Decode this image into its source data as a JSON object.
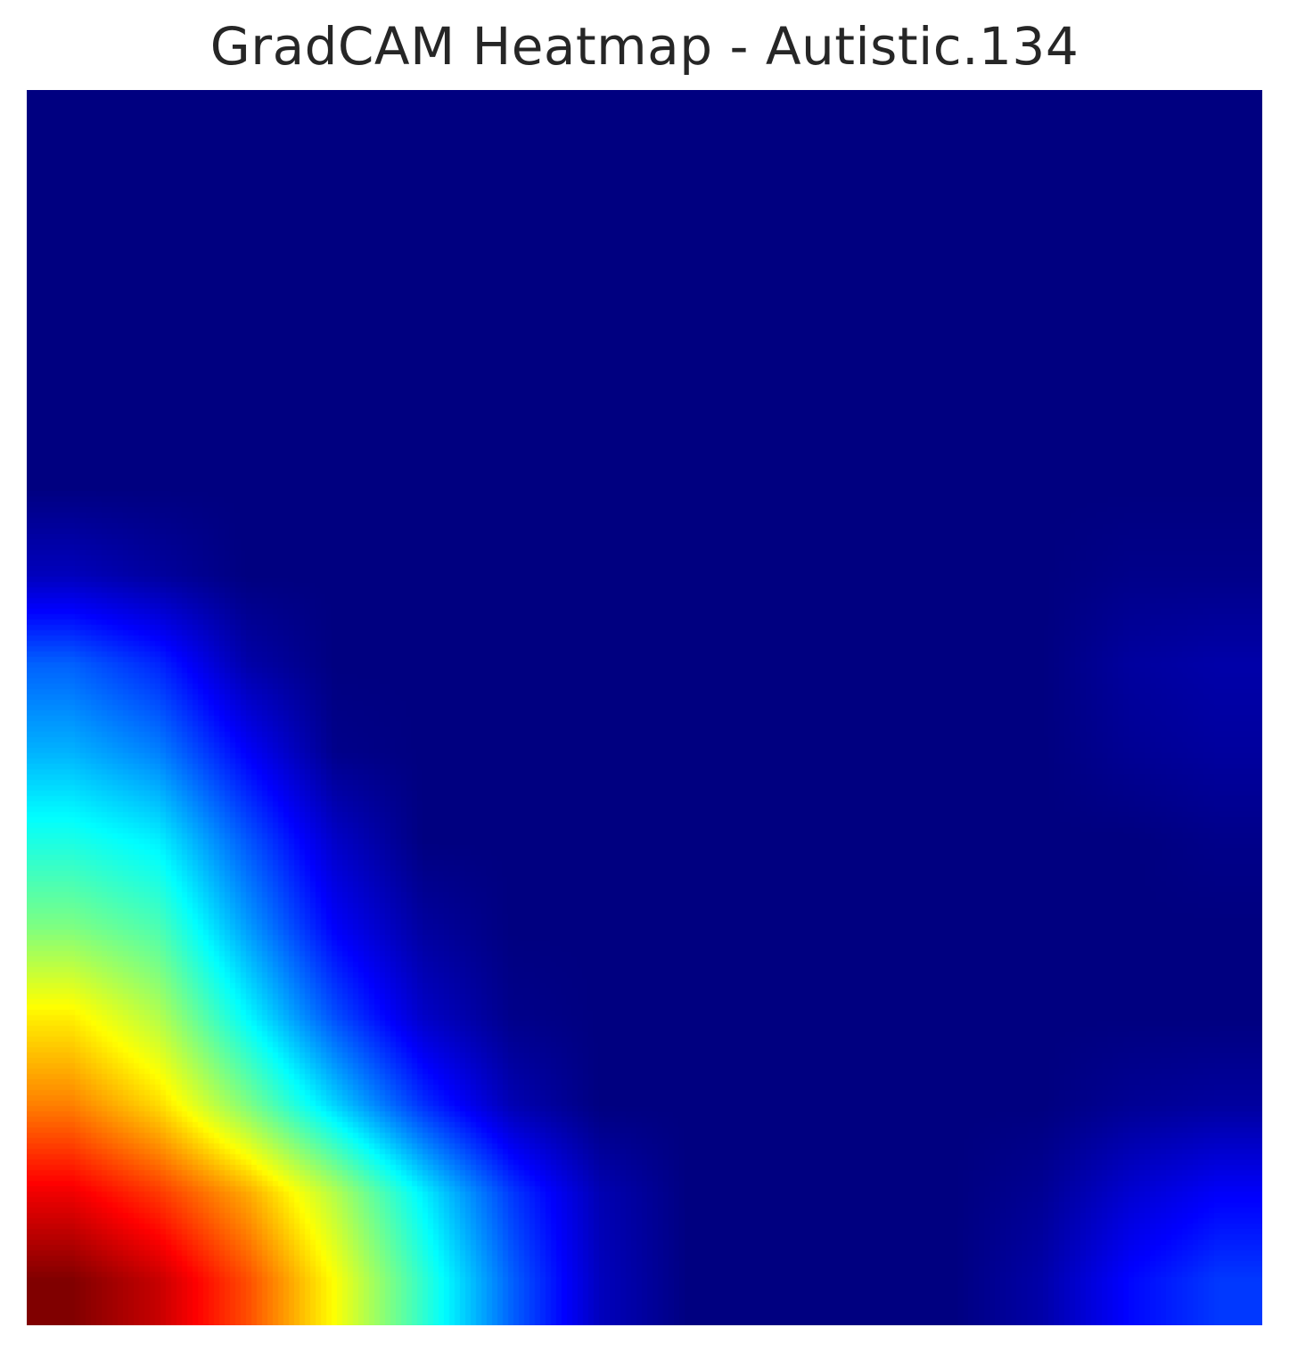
{
  "chart_data": {
    "type": "heatmap",
    "title": "GradCAM Heatmap - Autistic.134",
    "colormap": "jet",
    "grid": false,
    "axes_visible": false,
    "value_range": [
      0,
      1
    ],
    "values": [
      [
        0.0,
        0.0,
        0.0,
        0.0,
        0.0,
        0.0,
        0.0,
        0.0,
        0.0,
        0.0,
        0.0,
        0.0,
        0.0,
        0.0
      ],
      [
        0.0,
        0.0,
        0.0,
        0.0,
        0.0,
        0.0,
        0.0,
        0.0,
        0.0,
        0.0,
        0.0,
        0.0,
        0.0,
        0.0
      ],
      [
        0.0,
        0.0,
        0.0,
        0.0,
        0.0,
        0.0,
        0.0,
        0.0,
        0.0,
        0.0,
        0.0,
        0.0,
        0.0,
        0.0
      ],
      [
        0.0,
        0.0,
        0.0,
        0.0,
        0.0,
        0.0,
        0.0,
        0.0,
        0.0,
        0.0,
        0.0,
        0.0,
        0.0,
        0.0
      ],
      [
        0.0,
        0.0,
        0.0,
        0.0,
        0.0,
        0.0,
        0.0,
        0.0,
        0.0,
        0.0,
        0.0,
        0.0,
        0.0,
        0.0
      ],
      [
        0.06,
        0.03,
        0.0,
        0.0,
        0.0,
        0.0,
        0.0,
        0.0,
        0.0,
        0.0,
        0.0,
        0.0,
        0.01,
        0.01
      ],
      [
        0.22,
        0.16,
        0.04,
        0.0,
        0.0,
        0.0,
        0.0,
        0.0,
        0.0,
        0.0,
        0.0,
        0.0,
        0.03,
        0.04
      ],
      [
        0.3,
        0.25,
        0.12,
        0.01,
        0.0,
        0.0,
        0.0,
        0.0,
        0.0,
        0.0,
        0.0,
        0.0,
        0.02,
        0.03
      ],
      [
        0.4,
        0.36,
        0.21,
        0.07,
        0.0,
        0.0,
        0.0,
        0.0,
        0.0,
        0.0,
        0.0,
        0.0,
        0.0,
        0.01
      ],
      [
        0.5,
        0.45,
        0.28,
        0.12,
        0.03,
        0.0,
        0.0,
        0.0,
        0.0,
        0.0,
        0.0,
        0.0,
        0.0,
        0.0
      ],
      [
        0.64,
        0.55,
        0.37,
        0.2,
        0.07,
        0.01,
        0.0,
        0.0,
        0.0,
        0.0,
        0.0,
        0.0,
        0.0,
        0.0
      ],
      [
        0.75,
        0.66,
        0.5,
        0.33,
        0.17,
        0.05,
        0.0,
        0.0,
        0.0,
        0.0,
        0.0,
        0.0,
        0.02,
        0.03
      ],
      [
        0.89,
        0.82,
        0.71,
        0.55,
        0.36,
        0.18,
        0.05,
        0.0,
        0.0,
        0.0,
        0.0,
        0.02,
        0.08,
        0.12
      ],
      [
        1.0,
        0.93,
        0.8,
        0.62,
        0.42,
        0.22,
        0.06,
        0.0,
        0.0,
        0.0,
        0.0,
        0.04,
        0.13,
        0.18
      ]
    ]
  }
}
